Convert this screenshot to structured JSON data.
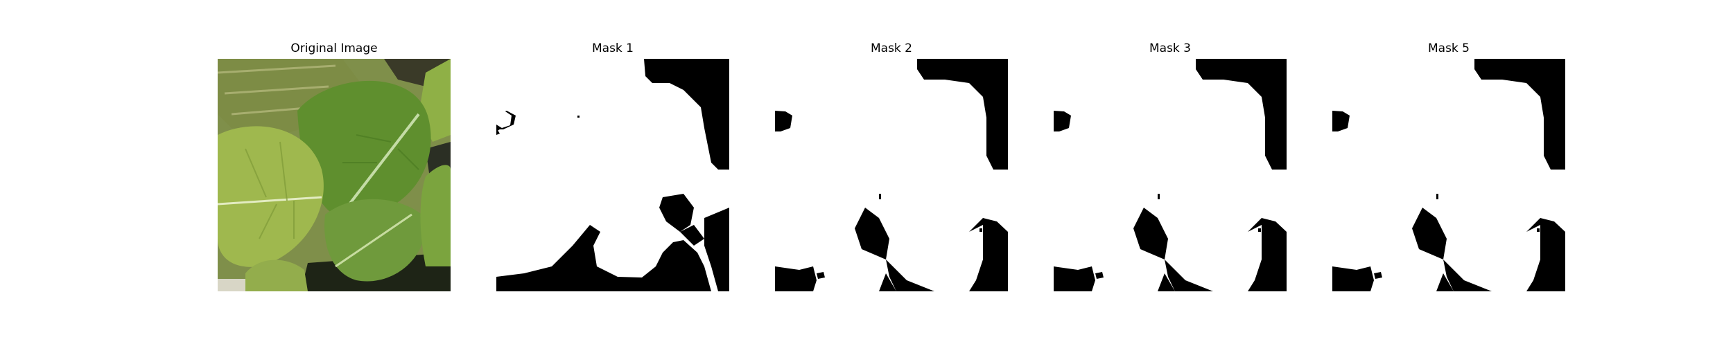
{
  "figure": {
    "panels": [
      {
        "title": "Original Image",
        "kind": "photo",
        "subject": "green leaves"
      },
      {
        "title": "Mask 1",
        "kind": "binary-mask"
      },
      {
        "title": "Mask 2",
        "kind": "binary-mask"
      },
      {
        "title": "Mask 3",
        "kind": "binary-mask"
      },
      {
        "title": "Mask 5",
        "kind": "binary-mask"
      }
    ]
  },
  "colors": {
    "mask_foreground": "#ffffff",
    "mask_background": "#000000",
    "leaf_light": "#a8bd55",
    "leaf_dark": "#5a8a2e"
  }
}
